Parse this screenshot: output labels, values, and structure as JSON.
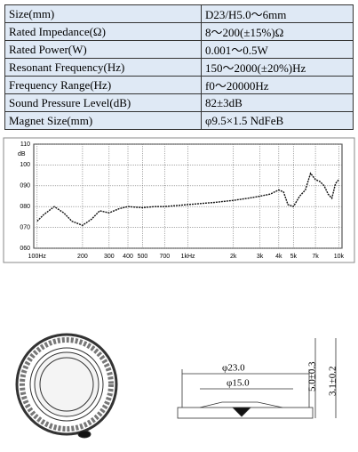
{
  "table": {
    "rows": [
      [
        "Size(mm)",
        "D23/H5.0～6mm"
      ],
      [
        "Rated Impedance(Ω)",
        "8～200(±15%)Ω"
      ],
      [
        "Rated Power(W)",
        "0.001～0.5W"
      ],
      [
        "Resonant Frequency(Hz)",
        "150～2000(±20%)Hz"
      ],
      [
        "Frequency Range(Hz)",
        "f0～20000Hz"
      ],
      [
        "Sound Pressure Level(dB)",
        "82±3dB"
      ],
      [
        "Magnet Size(mm)",
        "φ9.5×1.5 NdFeB"
      ]
    ]
  },
  "chart_data": {
    "type": "line",
    "y_label": "dB",
    "color": "#111111",
    "log_x": true,
    "grid": true,
    "x": [
      100,
      110,
      130,
      150,
      170,
      200,
      230,
      260,
      300,
      350,
      400,
      500,
      600,
      700,
      1000,
      1500,
      2000,
      2500,
      3000,
      3500,
      4000,
      4300,
      4600,
      5000,
      5500,
      6000,
      6500,
      7000,
      7500,
      8000,
      8500,
      9000,
      9500,
      10000
    ],
    "values": [
      73,
      76,
      80,
      77,
      73,
      71,
      74,
      78,
      77,
      79,
      80,
      79.5,
      80,
      80,
      81,
      82,
      83,
      84,
      85,
      86,
      88,
      87,
      81,
      80,
      85,
      88,
      96,
      93,
      92,
      90,
      86,
      84,
      91,
      93
    ],
    "xlim": [
      95,
      10500
    ],
    "ylim": [
      60,
      110
    ],
    "xticks": [
      {
        "value": 100,
        "label": "100Hz"
      },
      200,
      300,
      400,
      500,
      700,
      {
        "value": 1000,
        "label": "1kHz"
      },
      {
        "value": 2000,
        "label": "2k"
      },
      {
        "value": 3000,
        "label": "3k"
      },
      {
        "value": 4000,
        "label": "4k"
      },
      {
        "value": 5000,
        "label": "5k"
      },
      {
        "value": 7000,
        "label": "7k"
      },
      {
        "value": 10000,
        "label": "10k"
      }
    ],
    "yticks": [
      {
        "value": 60,
        "label": "060"
      },
      {
        "value": 70,
        "label": "070"
      },
      {
        "value": 80,
        "label": "080"
      },
      {
        "value": 90,
        "label": "090"
      },
      100,
      110
    ]
  },
  "drawing": {
    "outer_diameter": "φ23.0",
    "inner_diameter": "φ15.0",
    "height": "5.0±0.3",
    "depth": "3.1±0.2"
  }
}
